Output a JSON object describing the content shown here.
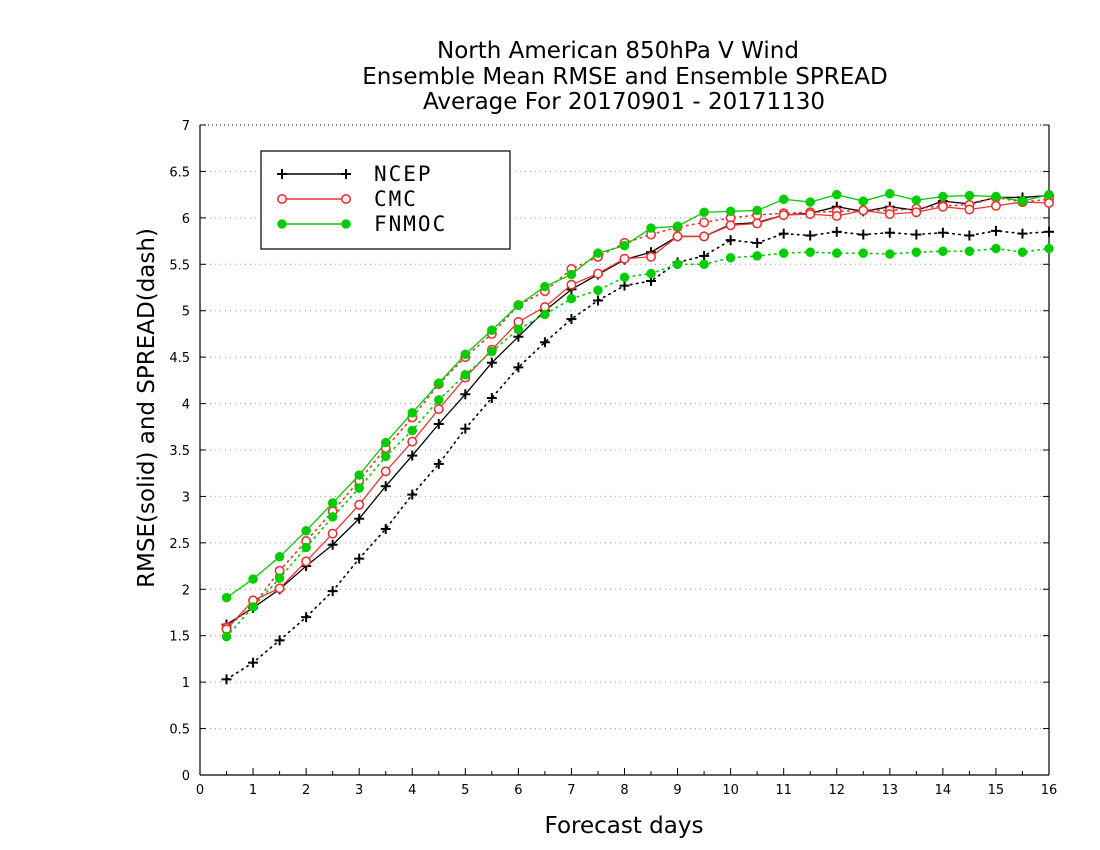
{
  "chart_data": {
    "type": "line",
    "title": [
      "North American 850hPa V Wind",
      "Ensemble Mean RMSE and Ensemble SPREAD",
      "Average For 20170901 - 20171130"
    ],
    "xlabel": "Forecast days",
    "ylabel": "RMSE(solid) and SPREAD(dash)",
    "xlim": [
      0,
      16
    ],
    "ylim": [
      0,
      7
    ],
    "x_ticks": [
      "0",
      "1",
      "2",
      "3",
      "4",
      "5",
      "6",
      "7",
      "8",
      "9",
      "10",
      "11",
      "12",
      "13",
      "14",
      "15",
      "16"
    ],
    "y_ticks": [
      "0",
      "0.5",
      "1",
      "1.5",
      "2",
      "2.5",
      "3",
      "3.5",
      "4",
      "4.5",
      "5",
      "5.5",
      "6",
      "6.5",
      "7"
    ],
    "grid": "horizontal-dotted",
    "legend_placement": "top-left",
    "x": [
      0.5,
      1,
      1.5,
      2,
      2.5,
      3,
      3.5,
      4,
      4.5,
      5,
      5.5,
      6,
      6.5,
      7,
      7.5,
      8,
      8.5,
      9,
      9.5,
      10,
      10.5,
      11,
      11.5,
      12,
      12.5,
      13,
      13.5,
      14,
      14.5,
      15,
      15.5,
      16
    ],
    "series": [
      {
        "name": "NCEP",
        "color": "#000000",
        "marker": "plus",
        "rmse": [
          1.62,
          1.8,
          2.0,
          2.25,
          2.48,
          2.76,
          3.11,
          3.44,
          3.78,
          4.1,
          4.44,
          4.72,
          5.0,
          5.23,
          5.39,
          5.55,
          5.63,
          5.8,
          5.8,
          5.93,
          5.95,
          6.03,
          6.05,
          6.12,
          6.07,
          6.12,
          6.08,
          6.18,
          6.15,
          6.22,
          6.22,
          6.24
        ],
        "spread": [
          1.03,
          1.21,
          1.45,
          1.7,
          1.98,
          2.33,
          2.65,
          3.02,
          3.35,
          3.73,
          4.06,
          4.39,
          4.66,
          4.91,
          5.11,
          5.27,
          5.32,
          5.52,
          5.59,
          5.76,
          5.73,
          5.83,
          5.81,
          5.85,
          5.82,
          5.84,
          5.82,
          5.84,
          5.81,
          5.86,
          5.83,
          5.85
        ]
      },
      {
        "name": "CMC",
        "color": "#ee3333",
        "marker": "open-circle",
        "rmse": [
          1.57,
          1.88,
          2.01,
          2.3,
          2.6,
          2.91,
          3.27,
          3.59,
          3.94,
          4.28,
          4.58,
          4.88,
          5.04,
          5.28,
          5.4,
          5.56,
          5.58,
          5.8,
          5.8,
          5.92,
          5.94,
          6.03,
          6.04,
          6.02,
          6.08,
          6.04,
          6.06,
          6.12,
          6.09,
          6.13,
          6.17,
          6.16
        ],
        "spread": [
          1.59,
          1.82,
          2.2,
          2.52,
          2.84,
          3.17,
          3.52,
          3.85,
          4.21,
          4.5,
          4.75,
          5.06,
          5.21,
          5.45,
          5.58,
          5.73,
          5.82,
          5.9,
          5.95,
          6.0,
          6.03,
          6.05,
          6.06,
          6.07,
          6.08,
          6.08,
          6.1,
          6.13,
          6.14,
          6.22,
          6.17,
          6.2
        ]
      },
      {
        "name": "FNMOC",
        "color": "#00cc00",
        "marker": "filled-circle",
        "rmse": [
          1.91,
          2.11,
          2.35,
          2.63,
          2.93,
          3.23,
          3.58,
          3.9,
          4.22,
          4.53,
          4.79,
          5.06,
          5.26,
          5.39,
          5.62,
          5.7,
          5.89,
          5.91,
          6.06,
          6.07,
          6.08,
          6.2,
          6.17,
          6.25,
          6.18,
          6.26,
          6.19,
          6.23,
          6.24,
          6.23,
          6.18,
          6.25
        ],
        "spread": [
          1.49,
          1.81,
          2.12,
          2.45,
          2.78,
          3.09,
          3.43,
          3.71,
          4.04,
          4.31,
          4.56,
          4.8,
          4.96,
          5.13,
          5.22,
          5.36,
          5.4,
          5.5,
          5.5,
          5.57,
          5.59,
          5.62,
          5.63,
          5.62,
          5.62,
          5.61,
          5.63,
          5.64,
          5.64,
          5.67,
          5.63,
          5.67
        ]
      }
    ]
  }
}
